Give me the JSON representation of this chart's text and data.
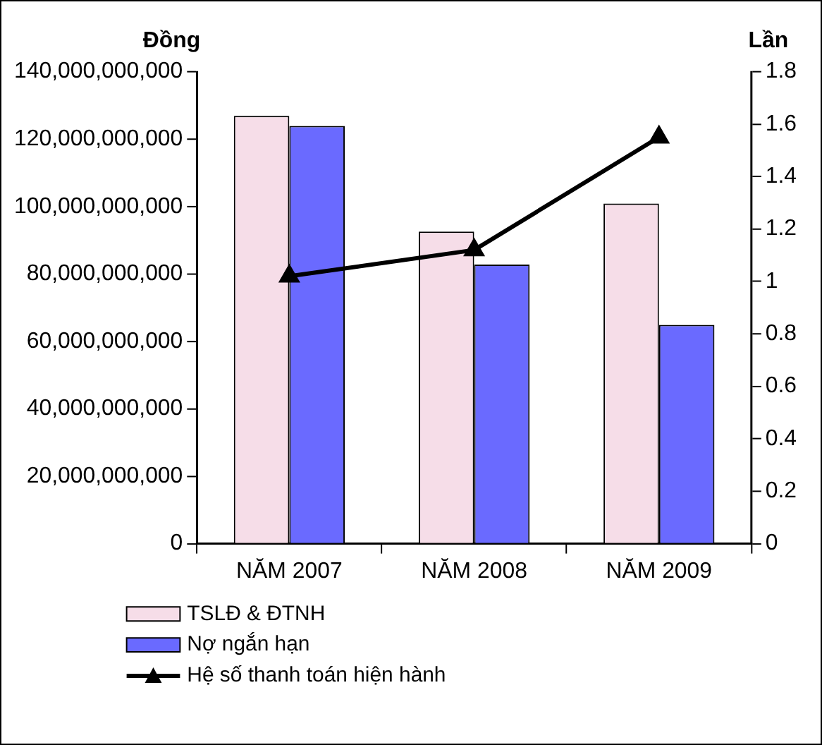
{
  "chart_data": {
    "type": "bar",
    "ylabel": "Đồng",
    "y2label": "Lần",
    "categories": [
      "NĂM 2007",
      "NĂM 2008",
      "NĂM 2009"
    ],
    "series": [
      {
        "name": "TSLĐ & ĐTNH",
        "color": "#f6dde8",
        "values": [
          126900000000,
          92600000000,
          100900000000
        ]
      },
      {
        "name": "Nợ ngắn hạn",
        "color": "#6a6aff",
        "values": [
          123900000000,
          82800000000,
          64900000000
        ]
      },
      {
        "name": "Hệ số thanh toán hiện hành",
        "type": "line",
        "axis": "y2",
        "color": "#000000",
        "values": [
          1.02,
          1.12,
          1.55
        ]
      }
    ],
    "ylim": [
      0,
      140000000000
    ],
    "yticks": [
      0,
      {
        "value": 20000000000,
        "label": "20,000,000,000"
      },
      {
        "value": 40000000000,
        "label": "40,000,000,000"
      },
      {
        "value": 60000000000,
        "label": "60,000,000,000"
      },
      {
        "value": 80000000000,
        "label": "80,000,000,000"
      },
      {
        "value": 100000000000,
        "label": "100,000,000,000"
      },
      {
        "value": 120000000000,
        "label": "120,000,000,000"
      },
      {
        "value": 140000000000,
        "label": "140,000,000,000"
      }
    ],
    "y2lim": [
      0,
      1.8
    ],
    "y2ticks": [
      0,
      0.2,
      0.4,
      0.6,
      0.8,
      1,
      1.2,
      1.4,
      1.6,
      1.8
    ],
    "grid": false,
    "legend": "bottom left",
    "marker": "triangle",
    "line_style": "solid"
  }
}
